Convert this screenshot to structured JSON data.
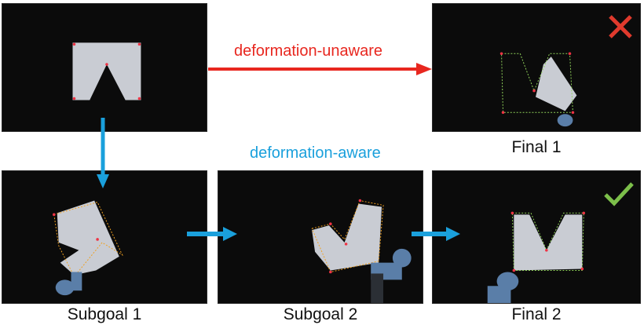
{
  "labels": {
    "unaware": "deformation-unaware",
    "aware": "deformation-aware",
    "final1": "Final 1",
    "final2": "Final 2",
    "subgoal1": "Subgoal 1",
    "subgoal2": "Subgoal 2"
  },
  "colors": {
    "unaware": "#e8271f",
    "aware": "#1aa0dc",
    "fail_mark": "#e03a2d",
    "success_mark": "#7cbf4a",
    "panel_bg": "#0b0b0b",
    "cloth": "#c9ccd3",
    "target_outline_orange": "#f0a020",
    "target_outline_green": "#8fd15a",
    "robot": "#5a7ea8"
  },
  "icons": {
    "fail": "cross-icon",
    "success": "check-icon",
    "arrow_unaware": "arrow-right-icon",
    "arrow_aware_down": "arrow-down-icon",
    "arrow_aware_right": "arrow-right-icon"
  }
}
